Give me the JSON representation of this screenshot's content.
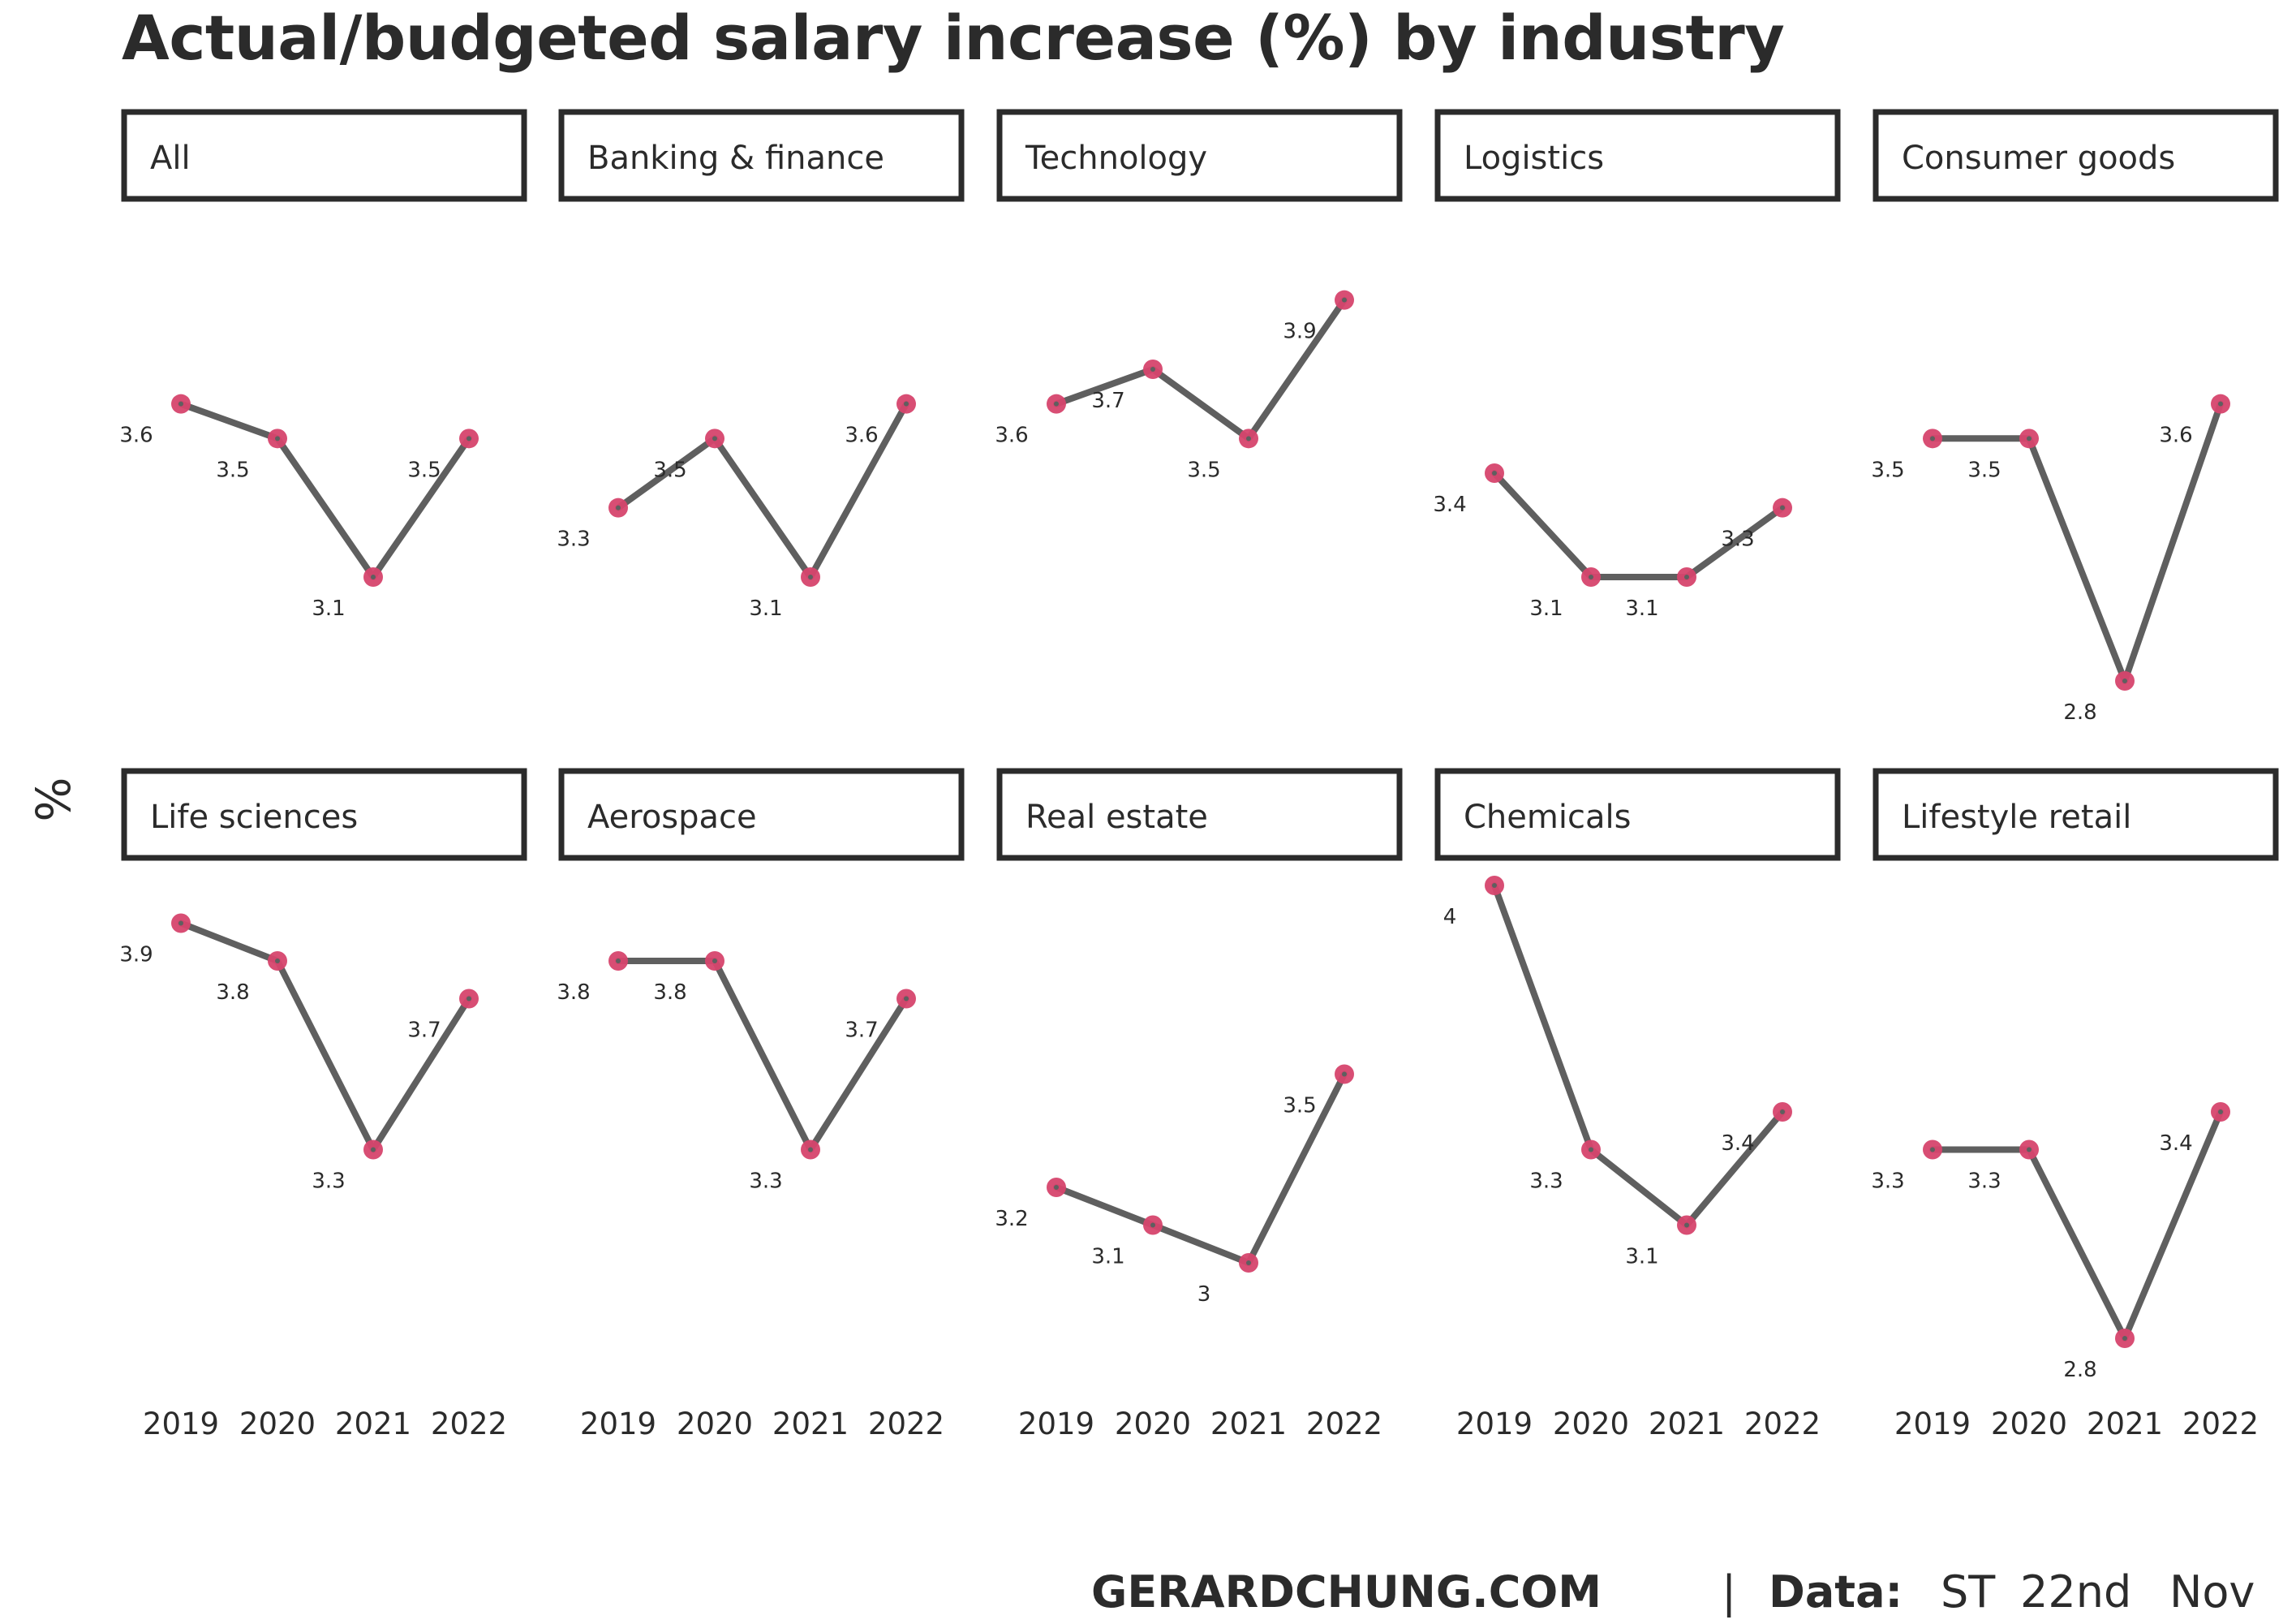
{
  "title": "Actual/budgeted salary increase (%) by industry",
  "caption": {
    "site": "GERARDCHUNG.COM",
    "separator": "|",
    "data_label": "Data:",
    "source_words": [
      "ST",
      "22nd",
      "Nov"
    ]
  },
  "chart_data": {
    "type": "line",
    "ylabel": "%",
    "x": [
      "2019",
      "2020",
      "2021",
      "2022"
    ],
    "ylim": [
      2.8,
      4.0
    ],
    "line_color": "#5f5f5f",
    "point_color": "#d6456d",
    "panels": [
      {
        "name": "All",
        "values": [
          3.6,
          3.5,
          3.1,
          3.5
        ]
      },
      {
        "name": "Banking & finance",
        "values": [
          3.3,
          3.5,
          3.1,
          3.6
        ]
      },
      {
        "name": "Technology",
        "values": [
          3.6,
          3.7,
          3.5,
          3.9
        ]
      },
      {
        "name": "Logistics",
        "values": [
          3.4,
          3.1,
          3.1,
          3.3
        ]
      },
      {
        "name": "Consumer goods",
        "values": [
          3.5,
          3.5,
          2.8,
          3.6
        ]
      },
      {
        "name": "Life sciences",
        "values": [
          3.9,
          3.8,
          3.3,
          3.7
        ]
      },
      {
        "name": "Aerospace",
        "values": [
          3.8,
          3.8,
          3.3,
          3.7
        ]
      },
      {
        "name": "Real estate",
        "values": [
          3.2,
          3.1,
          3,
          3.5
        ]
      },
      {
        "name": "Chemicals",
        "values": [
          4,
          3.3,
          3.1,
          3.4
        ]
      },
      {
        "name": "Lifestyle retail",
        "values": [
          3.3,
          3.3,
          2.8,
          3.4
        ]
      }
    ]
  }
}
